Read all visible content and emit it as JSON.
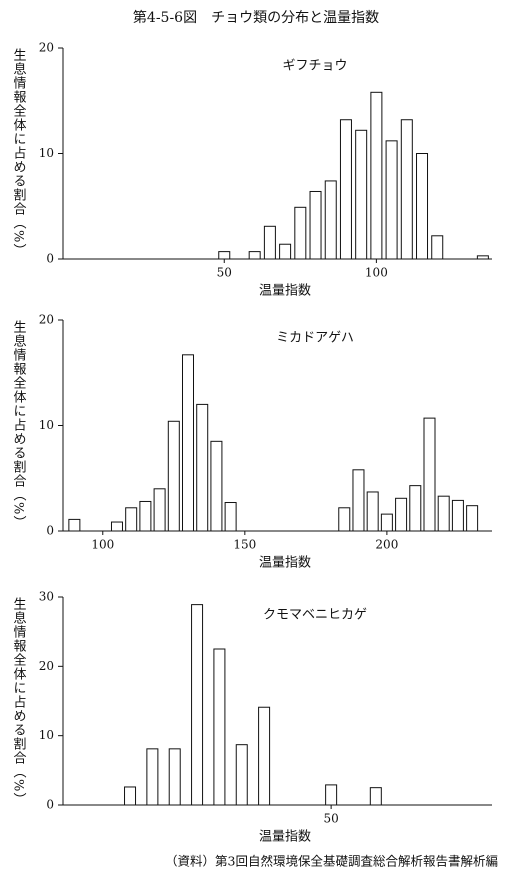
{
  "title": "第4-5-6図　チョウ類の分布と温量指数",
  "source": "（資料）第3回自然環境保全基礎調査総合解析報告書解析編",
  "chart_data": [
    {
      "type": "bar",
      "title": "ギフチョウ",
      "xlabel": "温量指数",
      "ylabel": "生息情報全体に占める割合（%）",
      "color": "#ffffff",
      "x": [
        50,
        60,
        65,
        70,
        75,
        80,
        85,
        90,
        95,
        100,
        105,
        110,
        115,
        120,
        135
      ],
      "values": [
        0.7,
        0.7,
        3.1,
        1.4,
        4.9,
        6.4,
        7.4,
        13.2,
        12.2,
        15.8,
        11.2,
        13.2,
        10.0,
        2.2,
        0.3
      ],
      "xlim": [
        -3,
        138
      ],
      "xticks": [
        50,
        100
      ],
      "ylim": [
        0,
        20
      ],
      "yticks": [
        0,
        10,
        20
      ]
    },
    {
      "type": "bar",
      "title": "ミカドアゲハ",
      "xlabel": "温量指数",
      "ylabel": "生息情報全体に占める割合（%）",
      "color": "#ffffff",
      "x": [
        90,
        105,
        110,
        115,
        120,
        125,
        130,
        135,
        140,
        145,
        185,
        190,
        195,
        200,
        205,
        210,
        215,
        220,
        225,
        230
      ],
      "values": [
        1.1,
        0.85,
        2.2,
        2.8,
        4.0,
        10.4,
        16.7,
        12.0,
        8.5,
        2.7,
        2.2,
        5.8,
        3.7,
        1.6,
        3.1,
        4.3,
        10.7,
        3.3,
        2.9,
        2.4
      ],
      "xlim": [
        86,
        237
      ],
      "xticks": [
        100,
        150,
        200
      ],
      "ylim": [
        0,
        20
      ],
      "yticks": [
        0,
        10,
        20
      ]
    },
    {
      "type": "bar",
      "title": "クモマベニヒカゲ",
      "xlabel": "温量指数",
      "ylabel": "生息情報全体に占める割合（%）",
      "color": "#ffffff",
      "x": [
        5,
        10,
        15,
        20,
        25,
        30,
        35,
        50,
        60
      ],
      "values": [
        2.6,
        8.1,
        8.1,
        28.9,
        22.5,
        8.7,
        14.1,
        2.9,
        2.5
      ],
      "xlim": [
        -10,
        86
      ],
      "xticks": [
        50
      ],
      "ylim": [
        0,
        30
      ],
      "yticks": [
        0,
        10,
        20,
        30
      ]
    }
  ]
}
